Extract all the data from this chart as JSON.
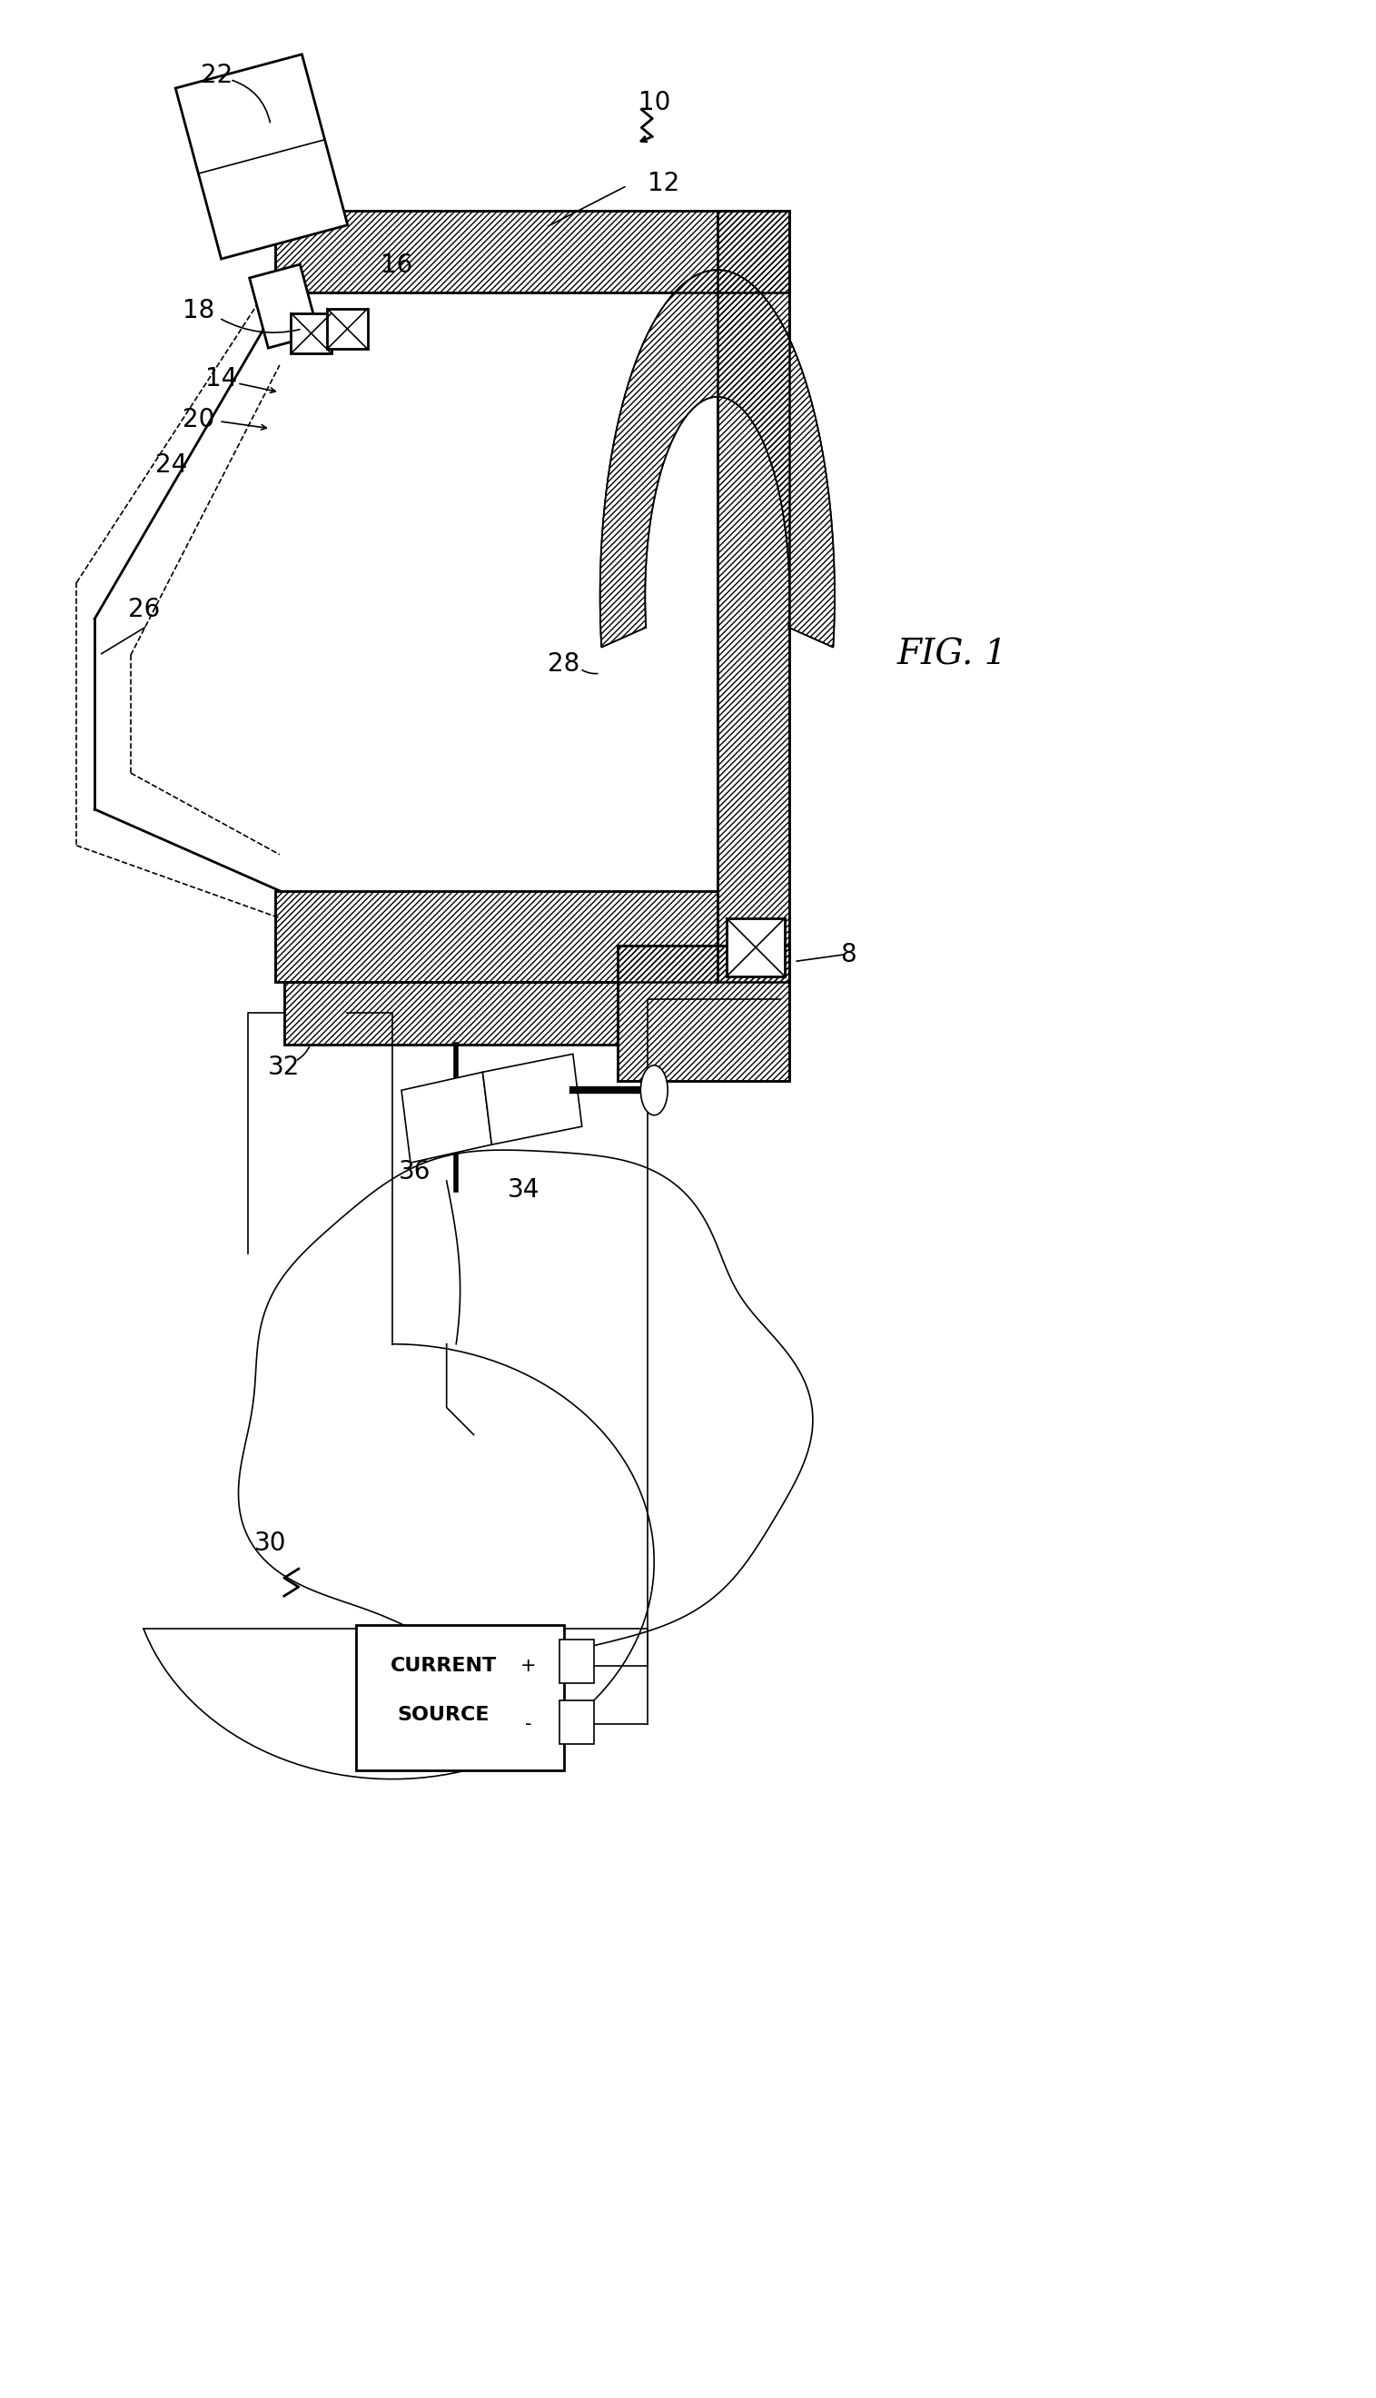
{
  "background_color": "#ffffff",
  "line_color": "#000000",
  "fig_label": "FIG. 1",
  "lw": 2.0,
  "lw_thin": 1.2,
  "label_fs": 20,
  "fig_label_fs": 26
}
